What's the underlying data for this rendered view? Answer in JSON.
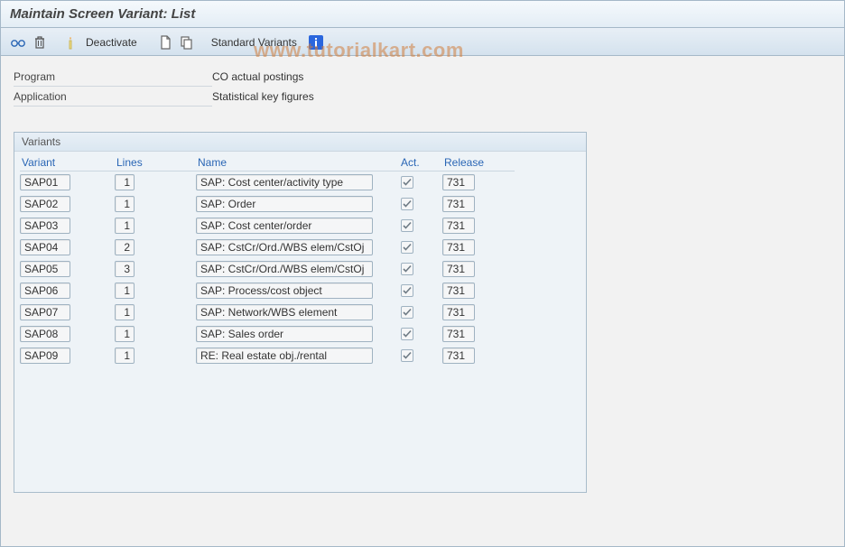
{
  "window": {
    "title": "Maintain Screen Variant: List"
  },
  "toolbar": {
    "deactivate_label": "Deactivate",
    "standard_variants_label": "Standard Variants"
  },
  "info": {
    "program_label": "Program",
    "program_value": "CO actual postings",
    "application_label": "Application",
    "application_value": "Statistical key figures"
  },
  "panel": {
    "title": "Variants",
    "columns": {
      "variant": "Variant",
      "lines": "Lines",
      "name": "Name",
      "act": "Act.",
      "release": "Release"
    },
    "rows": [
      {
        "variant": "SAP01",
        "lines": "1",
        "name": "SAP: Cost center/activity type",
        "act": true,
        "release": "731"
      },
      {
        "variant": "SAP02",
        "lines": "1",
        "name": "SAP: Order",
        "act": true,
        "release": "731"
      },
      {
        "variant": "SAP03",
        "lines": "1",
        "name": "SAP: Cost center/order",
        "act": true,
        "release": "731"
      },
      {
        "variant": "SAP04",
        "lines": "2",
        "name": "SAP: CstCr/Ord./WBS elem/CstOj",
        "act": true,
        "release": "731"
      },
      {
        "variant": "SAP05",
        "lines": "3",
        "name": "SAP: CstCr/Ord./WBS elem/CstOj",
        "act": true,
        "release": "731"
      },
      {
        "variant": "SAP06",
        "lines": "1",
        "name": "SAP: Process/cost object",
        "act": true,
        "release": "731"
      },
      {
        "variant": "SAP07",
        "lines": "1",
        "name": "SAP: Network/WBS element",
        "act": true,
        "release": "731"
      },
      {
        "variant": "SAP08",
        "lines": "1",
        "name": "SAP: Sales order",
        "act": true,
        "release": "731"
      },
      {
        "variant": "SAP09",
        "lines": "1",
        "name": "RE: Real estate obj./rental",
        "act": true,
        "release": "731"
      }
    ]
  },
  "watermark": "www.tutorialkart.com",
  "colors": {
    "header_link": "#2a66b5",
    "border": "#a5b8c8",
    "panel_bg": "#eef3f7"
  }
}
